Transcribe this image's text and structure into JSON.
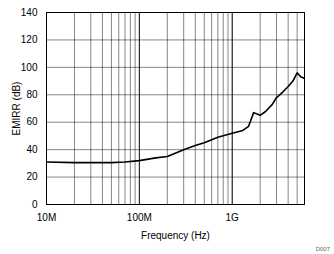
{
  "chart_data": {
    "type": "line",
    "x_label": "Frequency (Hz)",
    "y_label": "EMIRR (dB)",
    "annotations": [
      "D007"
    ],
    "x": [
      10000000,
      20000000,
      30000000,
      50000000,
      70000000,
      100000000,
      150000000,
      200000000,
      300000000,
      400000000,
      500000000,
      700000000,
      1000000000,
      1300000000,
      1500000000,
      1700000000,
      2000000000,
      2300000000,
      2700000000,
      3000000000,
      3500000000,
      4000000000,
      4500000000,
      5000000000,
      5500000000,
      6000000000
    ],
    "series": [
      {
        "name": "EMIRR",
        "color": "#000000",
        "values": [
          31,
          30.5,
          30.5,
          30.5,
          31,
          32,
          34,
          35,
          40,
          43,
          45,
          49,
          52,
          54,
          57,
          67,
          65,
          68,
          73,
          78,
          82,
          86,
          90,
          96,
          93,
          92
        ]
      }
    ],
    "log": "x",
    "grid": true,
    "xlim": [
      10000000,
      6000000000
    ],
    "xticks": [
      {
        "value": 10000000,
        "label": "10M"
      },
      {
        "value": 100000000,
        "label": "100M"
      },
      {
        "value": 1000000000,
        "label": "1G"
      }
    ],
    "ylim": [
      0,
      140
    ],
    "yticks": [
      0,
      20,
      40,
      60,
      80,
      100,
      120,
      140
    ]
  }
}
